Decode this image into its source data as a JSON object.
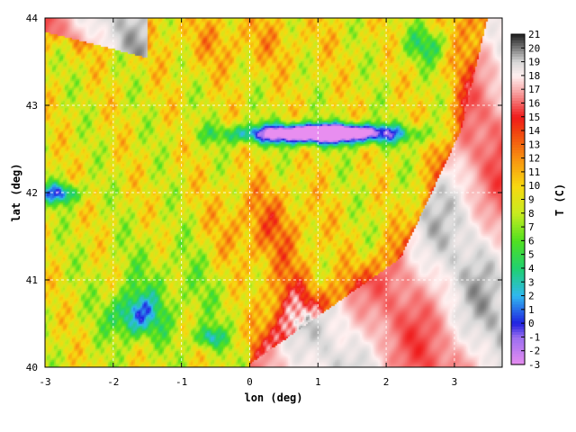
{
  "chart_data": {
    "type": "heatmap",
    "title": "",
    "xlabel": "lon (deg)",
    "ylabel": "lat (deg)",
    "xlim": [
      -3,
      3.7
    ],
    "ylim": [
      40,
      44
    ],
    "x_ticks": [
      "-3",
      "-2",
      "-1",
      "0",
      "1",
      "2",
      "3"
    ],
    "y_ticks": [
      "40",
      "41",
      "42",
      "43",
      "44"
    ],
    "grid": true,
    "colorbar": {
      "label": "T (C)",
      "min": -3,
      "max": 21,
      "ticks": [
        "-3",
        "-2",
        "-1",
        "0",
        "1",
        "2",
        "3",
        "4",
        "5",
        "6",
        "7",
        "8",
        "9",
        "10",
        "11",
        "12",
        "13",
        "14",
        "15",
        "16",
        "17",
        "18",
        "19",
        "20",
        "21"
      ],
      "colors": [
        {
          "v": -3,
          "c": "#e88ef0"
        },
        {
          "v": -1,
          "c": "#9a6ef0"
        },
        {
          "v": 0,
          "c": "#2020e0"
        },
        {
          "v": 2,
          "c": "#30b8f0"
        },
        {
          "v": 4,
          "c": "#20d070"
        },
        {
          "v": 6,
          "c": "#50e020"
        },
        {
          "v": 8,
          "c": "#c8ec20"
        },
        {
          "v": 10,
          "c": "#f8d810"
        },
        {
          "v": 12,
          "c": "#f89010"
        },
        {
          "v": 14,
          "c": "#f04010"
        },
        {
          "v": 15,
          "c": "#f01a1a"
        },
        {
          "v": 17,
          "c": "#f8b0b0"
        },
        {
          "v": 18,
          "c": "#fff0f0"
        },
        {
          "v": 19,
          "c": "#d8d8d8"
        },
        {
          "v": 21,
          "c": "#202020"
        }
      ]
    },
    "field": {
      "base": 9,
      "features": [
        {
          "lon": 1.0,
          "lat": 42.68,
          "slon": 1.15,
          "slat": 0.11,
          "amp": -17
        },
        {
          "lon": 1.2,
          "lat": 42.72,
          "slon": 0.6,
          "slat": 0.06,
          "amp": -6
        },
        {
          "lon": -2.8,
          "lat": 42.0,
          "slon": 0.3,
          "slat": 0.12,
          "amp": -8
        },
        {
          "lon": -1.7,
          "lat": 40.6,
          "slon": 0.35,
          "slat": 0.25,
          "amp": -7
        },
        {
          "lon": -0.6,
          "lat": 40.35,
          "slon": 0.2,
          "slat": 0.12,
          "amp": -6
        },
        {
          "lon": -1.2,
          "lat": 40.9,
          "slon": 0.9,
          "slat": 0.6,
          "amp": -2
        },
        {
          "lon": 2.6,
          "lat": 43.7,
          "slon": 0.35,
          "slat": 0.2,
          "amp": -4
        },
        {
          "lon": -2.6,
          "lat": 44.05,
          "slon": 0.7,
          "slat": 0.3,
          "amp": 6
        },
        {
          "lon": 0.2,
          "lat": 41.6,
          "slon": 0.7,
          "slat": 0.5,
          "amp": 3.5
        },
        {
          "lon": 0.6,
          "lat": 40.6,
          "slon": 0.4,
          "slat": 0.5,
          "amp": 6
        },
        {
          "lon": -0.2,
          "lat": 43.75,
          "slon": 1.2,
          "slat": 0.35,
          "amp": 2
        }
      ],
      "sea": {
        "base": 17.5,
        "edge": 15.0,
        "east_lon": 3.35
      }
    }
  }
}
